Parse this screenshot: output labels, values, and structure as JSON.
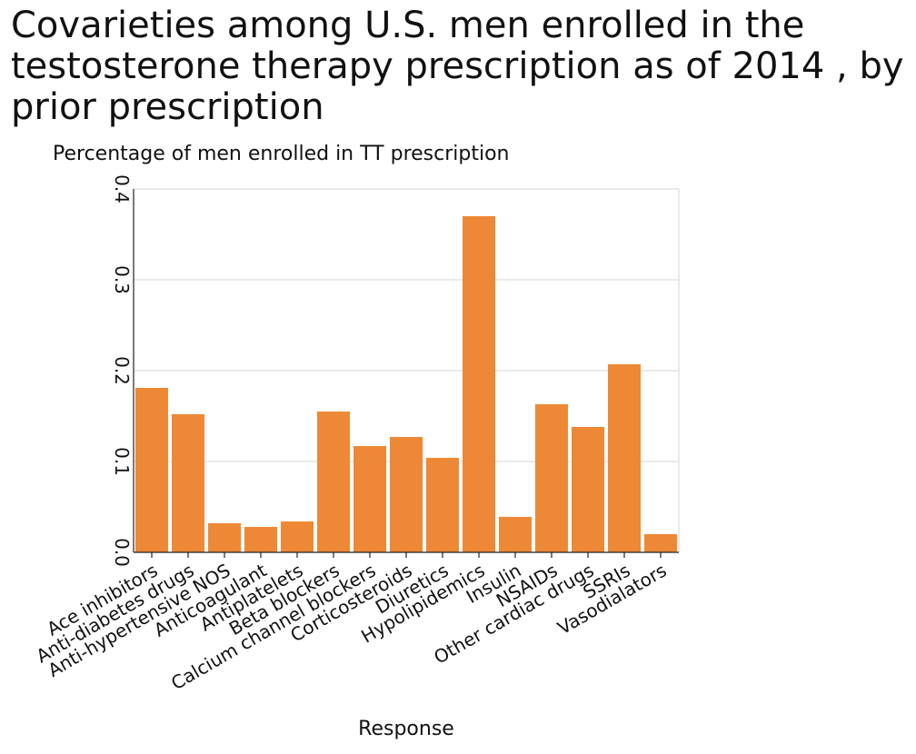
{
  "chart_data": {
    "type": "bar",
    "title": "Covarieties among U.S. men enrolled in the testosterone therapy prescription as of 2014 , by prior prescription",
    "ylabel": "Percentage of men enrolled in TT prescription",
    "xlabel": "Response",
    "ylim": [
      0,
      0.4
    ],
    "yticks": [
      "0.0",
      "0.1",
      "0.2",
      "0.3",
      "0.4"
    ],
    "grid": "horizontal",
    "bar_color": "#ed8936",
    "categories": [
      "Ace inhibitors",
      "Anti-diabetes drugs",
      "Anti-hypertensive NOS",
      "Anticoagulant",
      "Antiplatelets",
      "Beta blockers",
      "Calcium channel blockers",
      "Corticosteroids",
      "Diuretics",
      "Hypolipidemics",
      "Insulin",
      "NSAIDs",
      "Other cardiac drugs",
      "SSRIs",
      "Vasodialators"
    ],
    "values": [
      0.181,
      0.152,
      0.032,
      0.028,
      0.034,
      0.155,
      0.117,
      0.127,
      0.104,
      0.37,
      0.039,
      0.163,
      0.138,
      0.207,
      0.02
    ]
  }
}
